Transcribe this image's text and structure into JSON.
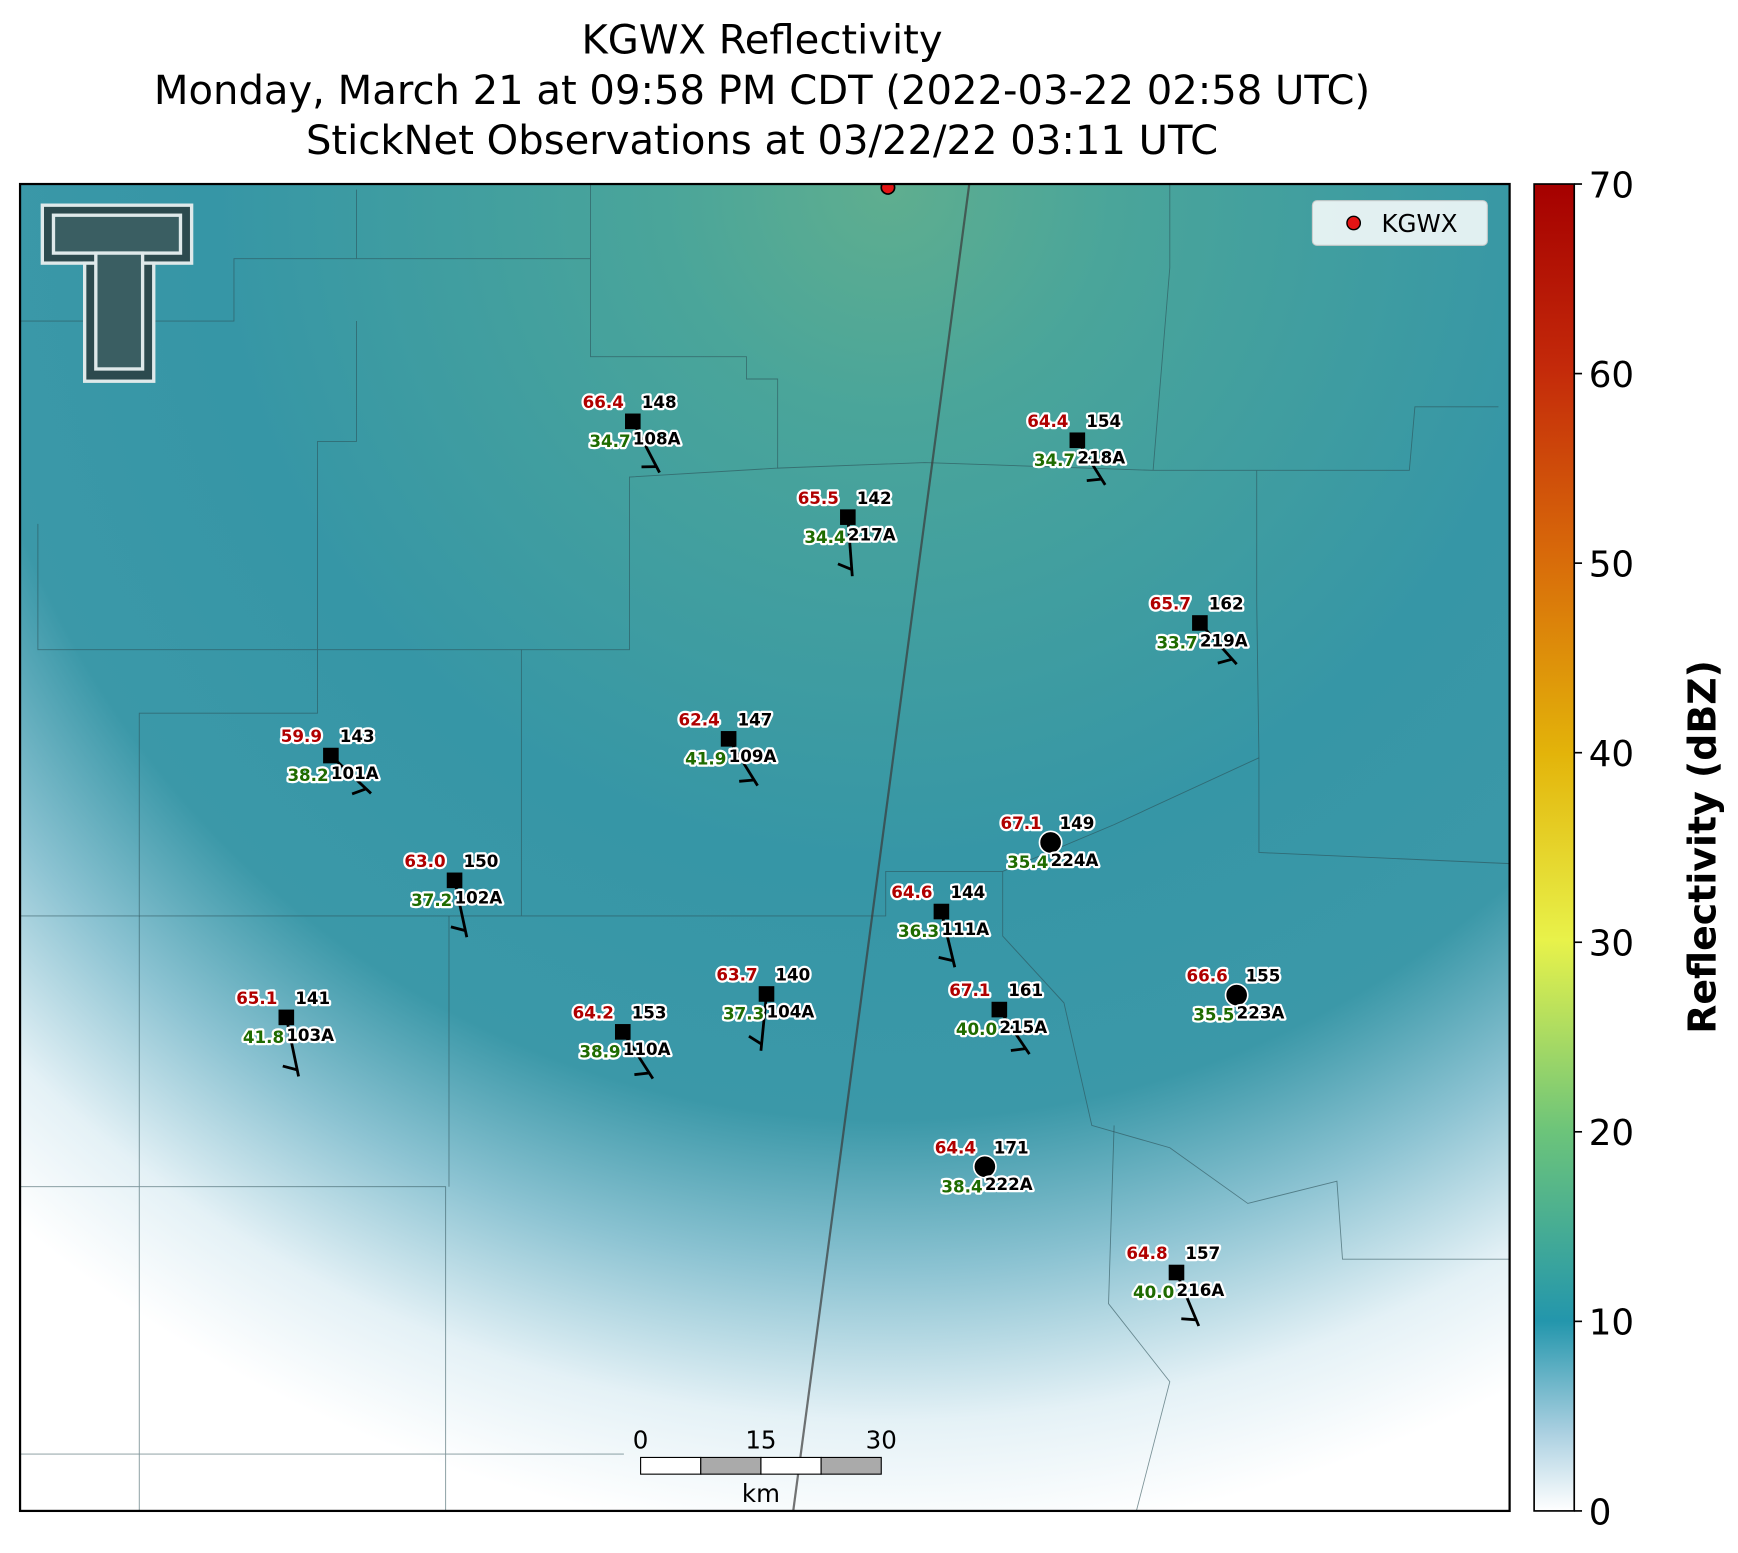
{
  "title": [
    "KGWX Reflectivity",
    "Monday, March 21 at 09:58 PM CDT (2022-03-22 02:58 UTC)",
    "StickNet Observations at 03/22/22 03:11 UTC"
  ],
  "legend": "KGWX",
  "colorbar": {
    "label": "Reflectivity (dBZ)",
    "lim": [
      0,
      70
    ],
    "ticks": [
      0,
      10,
      20,
      30,
      40,
      50,
      60,
      70
    ]
  },
  "scale_bar": {
    "ticks": [
      0,
      15,
      30
    ],
    "unit": "km"
  },
  "stations": [
    {
      "temperature": "66.4",
      "dewpoint": "34.7",
      "number": "148",
      "id": "108A"
    },
    {
      "temperature": "64.4",
      "dewpoint": "34.7",
      "number": "154",
      "id": "218A"
    },
    {
      "temperature": "65.5",
      "dewpoint": "34.4",
      "number": "142",
      "id": "217A"
    },
    {
      "temperature": "65.7",
      "dewpoint": "33.7",
      "number": "162",
      "id": "219A"
    },
    {
      "temperature": "59.9",
      "dewpoint": "38.2",
      "number": "143",
      "id": "101A"
    },
    {
      "temperature": "62.4",
      "dewpoint": "41.9",
      "number": "147",
      "id": "109A"
    },
    {
      "temperature": "67.1",
      "dewpoint": "35.4",
      "number": "149",
      "id": "224A"
    },
    {
      "temperature": "63.0",
      "dewpoint": "37.2",
      "number": "150",
      "id": "102A"
    },
    {
      "temperature": "64.6",
      "dewpoint": "36.3",
      "number": "144",
      "id": "111A"
    },
    {
      "temperature": "65.1",
      "dewpoint": "41.8",
      "number": "141",
      "id": "103A"
    },
    {
      "temperature": "64.2",
      "dewpoint": "38.9",
      "number": "153",
      "id": "110A"
    },
    {
      "temperature": "63.7",
      "dewpoint": "37.3",
      "number": "140",
      "id": "104A"
    },
    {
      "temperature": "67.1",
      "dewpoint": "40.0",
      "number": "161",
      "id": "215A"
    },
    {
      "temperature": "66.6",
      "dewpoint": "35.5",
      "number": "155",
      "id": "223A"
    },
    {
      "temperature": "64.4",
      "dewpoint": "38.4",
      "number": "171",
      "id": "222A"
    },
    {
      "temperature": "64.8",
      "dewpoint": "40.0",
      "number": "157",
      "id": "216A"
    }
  ]
}
